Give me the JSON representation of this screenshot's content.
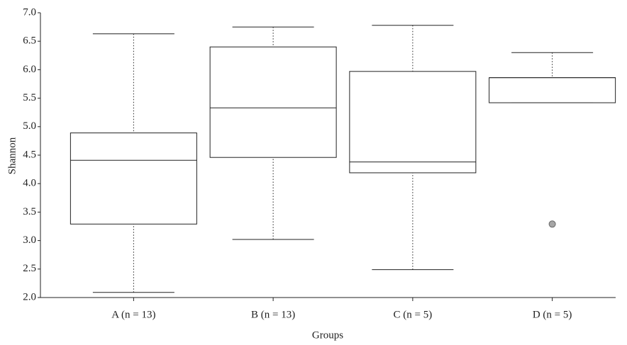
{
  "chart_data": {
    "type": "box",
    "ylabel": "Shannon",
    "xlabel": "Groups",
    "categories": [
      "A (n = 13)",
      "B (n = 13)",
      "C (n = 5)",
      "D (n = 5)"
    ],
    "boxes": [
      {
        "min": 2.09,
        "q1": 3.29,
        "median": 4.41,
        "q3": 4.89,
        "max": 6.63
      },
      {
        "min": 3.02,
        "q1": 4.46,
        "median": 5.33,
        "q3": 6.4,
        "max": 6.75
      },
      {
        "min": 2.49,
        "q1": 4.19,
        "median": 4.38,
        "q3": 5.97,
        "max": 6.78
      },
      {
        "min": 5.42,
        "q1": 5.42,
        "median": 5.86,
        "q3": 5.86,
        "max": 6.3,
        "outliers": [
          3.29
        ]
      }
    ],
    "ylim": [
      2.0,
      7.0
    ],
    "yticks": [
      {
        "value": 2,
        "label": "2.0"
      },
      2.5,
      {
        "value": 3,
        "label": "3.0"
      },
      3.5,
      {
        "value": 4,
        "label": "4.0"
      },
      4.5,
      {
        "value": 5,
        "label": "5.0"
      },
      5.5,
      {
        "value": 6,
        "label": "6.0"
      },
      6.5,
      {
        "value": 7,
        "label": "7.0"
      }
    ],
    "outlier_color": "#a6a6a6"
  }
}
